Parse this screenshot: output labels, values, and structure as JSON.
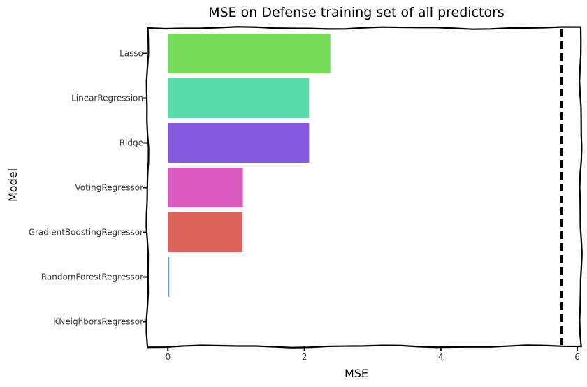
{
  "chart_data": {
    "type": "bar",
    "orientation": "horizontal",
    "title": "MSE on Defense training set of all predictors",
    "xlabel": "MSE",
    "ylabel": "Model",
    "xlim": [
      -0.3,
      6.05
    ],
    "xticks": [
      0,
      2,
      4,
      6
    ],
    "categories": [
      "Lasso",
      "LinearRegression",
      "Ridge",
      "VotingRegressor",
      "GradientBoostingRegressor",
      "RandomForestRegressor",
      "KNeighborsRegressor"
    ],
    "values": [
      2.38,
      2.07,
      2.07,
      1.1,
      1.09,
      0.02,
      0.0
    ],
    "colors": [
      "#76db58",
      "#57dba8",
      "#855ade",
      "#db58bf",
      "#dc6158",
      "#6a8fc9",
      "#ffffff"
    ],
    "reference_line": {
      "x": 5.77,
      "style": "dashed",
      "color": "#000000"
    },
    "grid": false,
    "legend": "none"
  }
}
